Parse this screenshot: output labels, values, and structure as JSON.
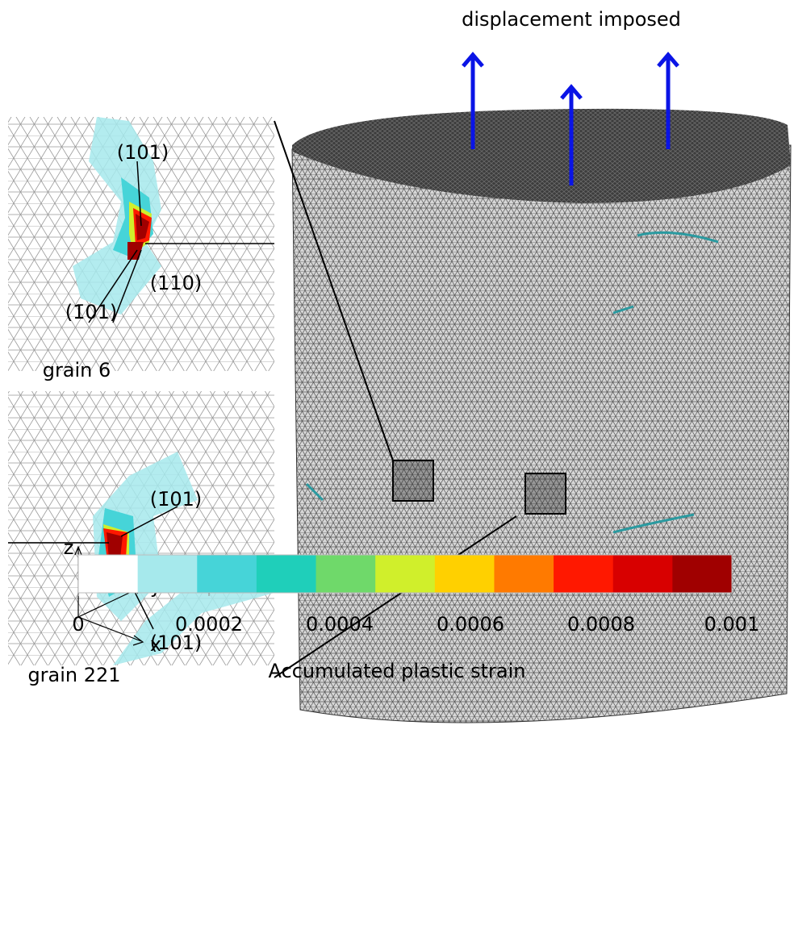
{
  "figure": {
    "title": "displacement imposed",
    "insets": [
      {
        "label": "grain 6",
        "planes": [
          "(101)",
          "(110)",
          "(1̄01)"
        ]
      },
      {
        "label": "grain 221",
        "planes": [
          "(1̄01)",
          "(101)"
        ]
      }
    ],
    "axes": {
      "z": "z",
      "y": "y",
      "x": "x"
    },
    "colorbar": {
      "label": "Accumulated plastic strain",
      "lim": [
        0,
        0.001
      ],
      "ticks": [
        0,
        0.0002,
        0.0004,
        0.0006,
        0.0008,
        0.001
      ],
      "colors": [
        "#ffffff",
        "#a6e9ec",
        "#46d4d8",
        "#1fcfba",
        "#6fd96a",
        "#d0ef2b",
        "#ffd000",
        "#ff7a00",
        "#ff1800",
        "#d80000",
        "#a00000"
      ]
    }
  }
}
